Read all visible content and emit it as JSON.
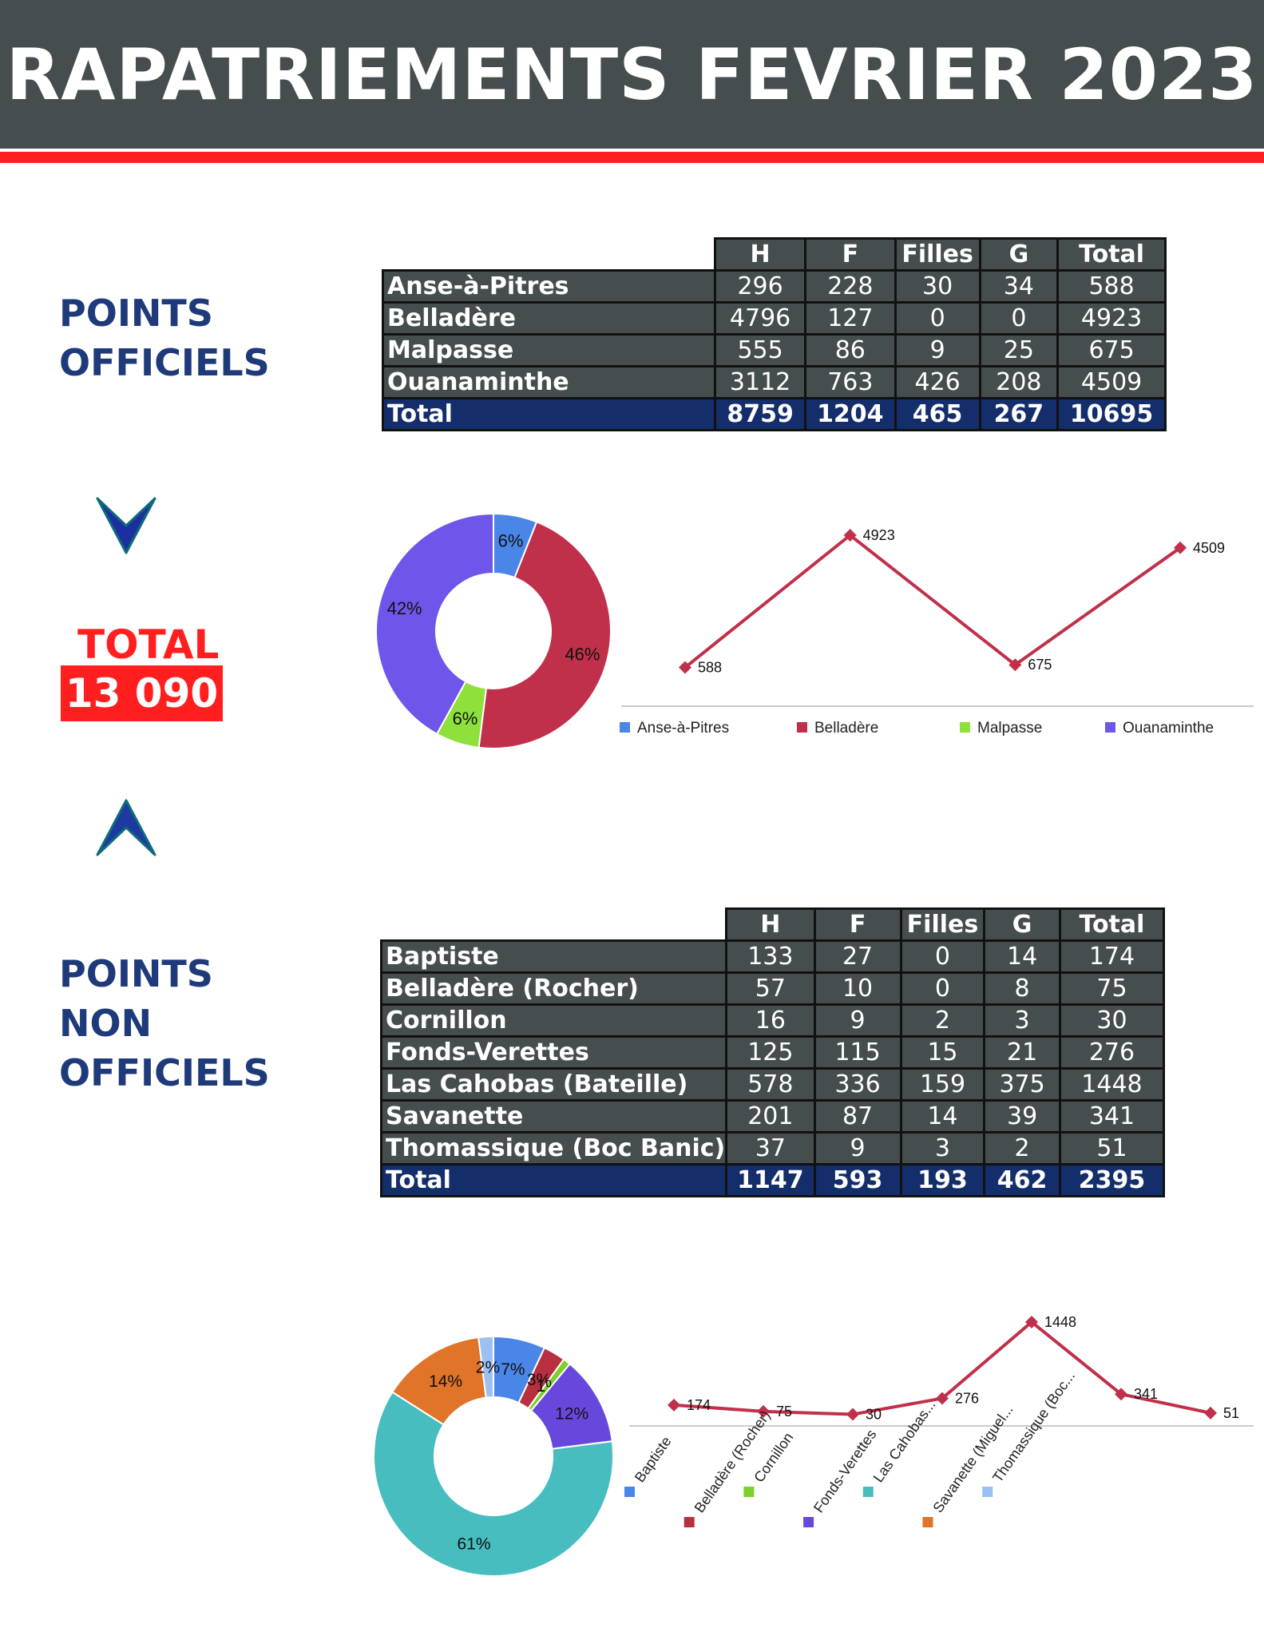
{
  "title": "RAPATRIEMENTS FEVRIER 2023",
  "official": {
    "label_lines": [
      "POINTS",
      "OFFICIELS"
    ],
    "columns": [
      "H",
      "F",
      "Filles",
      "G",
      "Total"
    ],
    "rows": [
      {
        "name": "Anse-à-Pitres",
        "values": [
          "296",
          "228",
          "30",
          "34",
          "588"
        ]
      },
      {
        "name": "Belladère",
        "values": [
          "4796",
          "127",
          "0",
          "0",
          "4923"
        ]
      },
      {
        "name": "Malpasse",
        "values": [
          "555",
          "86",
          "9",
          "25",
          "675"
        ]
      },
      {
        "name": "Ouanaminthe",
        "values": [
          "3112",
          "763",
          "426",
          "208",
          "4509"
        ]
      }
    ],
    "total": {
      "name": "Total",
      "values": [
        "8759",
        "1204",
        "465",
        "267",
        "10695"
      ]
    }
  },
  "grand_total": {
    "label": "TOTAL",
    "value": "13 090"
  },
  "non_official": {
    "label_lines": [
      "POINTS",
      "NON",
      "OFFICIELS"
    ],
    "columns": [
      "H",
      "F",
      "Filles",
      "G",
      "Total"
    ],
    "rows": [
      {
        "name": "Baptiste",
        "values": [
          "133",
          "27",
          "0",
          "14",
          "174"
        ]
      },
      {
        "name": "Belladère (Rocher)",
        "values": [
          "57",
          "10",
          "0",
          "8",
          "75"
        ]
      },
      {
        "name": "Cornillon",
        "values": [
          "16",
          "9",
          "2",
          "3",
          "30"
        ]
      },
      {
        "name": "Fonds-Verettes",
        "values": [
          "125",
          "115",
          "15",
          "21",
          "276"
        ]
      },
      {
        "name": "Las Cahobas (Bateille)",
        "values": [
          "578",
          "336",
          "159",
          "375",
          "1448"
        ]
      },
      {
        "name": "Savanette",
        "values": [
          "201",
          "87",
          "14",
          "39",
          "341"
        ]
      },
      {
        "name": "Thomassique (Boc Banic)",
        "values": [
          "37",
          "9",
          "3",
          "2",
          "51"
        ]
      }
    ],
    "total": {
      "name": "Total",
      "values": [
        "1147",
        "593",
        "193",
        "462",
        "2395"
      ]
    }
  },
  "chart_data": [
    {
      "type": "pie",
      "donut": true,
      "categories": [
        "Anse-à-Pitres",
        "Belladère",
        "Malpasse",
        "Ouanaminthe"
      ],
      "values": [
        6,
        46,
        6,
        42
      ],
      "labels": [
        "6%",
        "46%",
        "6%",
        "42%"
      ],
      "colors": [
        "#4a86e8",
        "#c0304a",
        "#8ee03a",
        "#7055ea"
      ]
    },
    {
      "type": "line",
      "categories": [
        "Anse-à-Pitres",
        "Belladère",
        "Malpasse",
        "Ouanaminthe"
      ],
      "values": [
        588,
        4923,
        675,
        4509
      ],
      "legend": [
        "Anse-à-Pitres",
        "Belladère",
        "Malpasse",
        "Ouanaminthe"
      ],
      "legend_colors": [
        "#4a86e8",
        "#c0304a",
        "#8ee03a",
        "#7055ea"
      ],
      "line_color": "#c0304a",
      "legend_position": "bottom"
    },
    {
      "type": "pie",
      "donut": true,
      "categories": [
        "Baptiste",
        "Belladère (Rocher)",
        "Cornillon",
        "Fonds-Verettes",
        "Las Cahobas (Bateille)",
        "Savanette",
        "Thomassique (Boc Banic)"
      ],
      "values": [
        7,
        3,
        1,
        12,
        61,
        14,
        2
      ],
      "labels": [
        "7%",
        "3%",
        "1%",
        "12%",
        "61%",
        "14%",
        "2%"
      ],
      "colors": [
        "#4a86e8",
        "#b8303e",
        "#7ccf2c",
        "#6848dc",
        "#48bdbf",
        "#e07428",
        "#9cc0f2"
      ]
    },
    {
      "type": "line",
      "categories": [
        "Baptiste",
        "Belladère (Rocher)",
        "Cornillon",
        "Fonds-Verettes",
        "Las Cahobas...",
        "Savanette (Miguel...",
        "Thomassique (Boc..."
      ],
      "values": [
        174,
        75,
        30,
        276,
        1448,
        341,
        51
      ],
      "legend_colors": [
        "#4a86e8",
        "#b8303e",
        "#7ccf2c",
        "#6848dc",
        "#48bdbf",
        "#e07428",
        "#9cc0f2"
      ],
      "line_color": "#c0304a",
      "legend_position": "bottom"
    }
  ]
}
